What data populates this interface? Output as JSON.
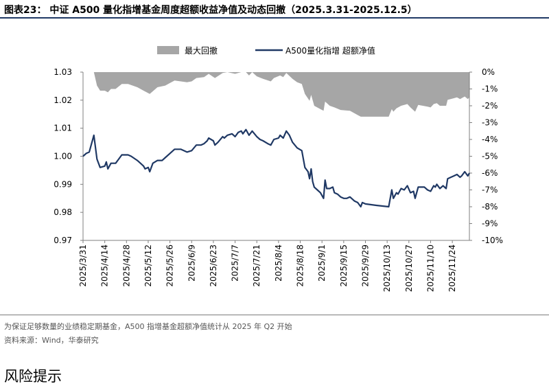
{
  "figure": {
    "title": "图表23：  中证 A500 量化指增基金周度超额收益净值及动态回撤（2025.3.31-2025.12.5）",
    "note": "为保证足够数量的业绩稳定期基金，A500 指增基金超额净值统计从 2025 年 Q2 开始",
    "source": "资料来源：Wind，华泰研究"
  },
  "next_section": {
    "title": "风险提示"
  },
  "chart_data": {
    "type": "line",
    "legend": {
      "placement": "top-center",
      "entries": [
        "最大回撤",
        "A500量化指增 超额净值"
      ]
    },
    "left_axis": {
      "ticks": [
        "0.97",
        "0.98",
        "0.99",
        "1.00",
        "1.01",
        "1.02",
        "1.03"
      ],
      "range": [
        0.97,
        1.03
      ]
    },
    "right_axis": {
      "ticks": [
        "0%",
        "-1%",
        "-2%",
        "-3%",
        "-4%",
        "-5%",
        "-6%",
        "-7%",
        "-8%",
        "-9%",
        "-10%"
      ],
      "range": [
        -10,
        0
      ]
    },
    "x_ticks": [
      "2025/3/31",
      "2025/4/14",
      "2025/4/28",
      "2025/5/12",
      "2025/5/26",
      "2025/6/9",
      "2025/6/23",
      "2025/7/7",
      "2025/7/21",
      "2025/8/4",
      "2025/8/18",
      "2025/9/1",
      "2025/9/15",
      "2025/9/29",
      "2025/10/13",
      "2025/10/27",
      "2025/11/10",
      "2025/11/24"
    ],
    "x_range": [
      "2025-03-31",
      "2025-12-05"
    ],
    "grid": false,
    "colors": {
      "nav_line": "#1f3864",
      "drawdown_area": "#a6a6a6"
    },
    "series": [
      {
        "name": "A500量化指增 超额净值",
        "axis": "left",
        "style": "line",
        "points": [
          [
            "2025-03-31",
            1.0
          ],
          [
            "2025-04-02",
            1.001
          ],
          [
            "2025-04-04",
            1.0015
          ],
          [
            "2025-04-07",
            1.0075
          ],
          [
            "2025-04-09",
            0.999
          ],
          [
            "2025-04-11",
            0.996
          ],
          [
            "2025-04-14",
            0.9965
          ],
          [
            "2025-04-15",
            0.998
          ],
          [
            "2025-04-16",
            0.9955
          ],
          [
            "2025-04-18",
            0.9975
          ],
          [
            "2025-04-21",
            0.9975
          ],
          [
            "2025-04-23",
            0.999
          ],
          [
            "2025-04-25",
            1.0005
          ],
          [
            "2025-04-29",
            1.0005
          ],
          [
            "2025-05-01",
            1.0
          ],
          [
            "2025-05-05",
            0.9985
          ],
          [
            "2025-05-07",
            0.9975
          ],
          [
            "2025-05-09",
            0.9965
          ],
          [
            "2025-05-10",
            0.9955
          ],
          [
            "2025-05-12",
            0.996
          ],
          [
            "2025-05-13",
            0.9945
          ],
          [
            "2025-05-15",
            0.9975
          ],
          [
            "2025-05-18",
            0.9985
          ],
          [
            "2025-05-21",
            0.9985
          ],
          [
            "2025-05-23",
            0.9995
          ],
          [
            "2025-05-26",
            1.001
          ],
          [
            "2025-05-29",
            1.0025
          ],
          [
            "2025-06-02",
            1.0025
          ],
          [
            "2025-06-06",
            1.0015
          ],
          [
            "2025-06-09",
            1.002
          ],
          [
            "2025-06-12",
            1.004
          ],
          [
            "2025-06-15",
            1.004
          ],
          [
            "2025-06-17",
            1.0045
          ],
          [
            "2025-06-19",
            1.0055
          ],
          [
            "2025-06-20",
            1.0065
          ],
          [
            "2025-06-23",
            1.0055
          ],
          [
            "2025-06-24",
            1.004
          ],
          [
            "2025-06-26",
            1.005
          ],
          [
            "2025-06-29",
            1.007
          ],
          [
            "2025-06-30",
            1.0065
          ],
          [
            "2025-07-02",
            1.0075
          ],
          [
            "2025-07-05",
            1.008
          ],
          [
            "2025-07-07",
            1.007
          ],
          [
            "2025-07-09",
            1.0085
          ],
          [
            "2025-07-11",
            1.009
          ],
          [
            "2025-07-12",
            1.008
          ],
          [
            "2025-07-14",
            1.0095
          ],
          [
            "2025-07-16",
            1.0075
          ],
          [
            "2025-07-18",
            1.009
          ],
          [
            "2025-07-21",
            1.007
          ],
          [
            "2025-07-23",
            1.006
          ],
          [
            "2025-07-25",
            1.0055
          ],
          [
            "2025-07-28",
            1.0045
          ],
          [
            "2025-07-30",
            1.004
          ],
          [
            "2025-08-01",
            1.006
          ],
          [
            "2025-08-04",
            1.0065
          ],
          [
            "2025-08-05",
            1.0075
          ],
          [
            "2025-08-07",
            1.0065
          ],
          [
            "2025-08-09",
            1.009
          ],
          [
            "2025-08-11",
            1.0075
          ],
          [
            "2025-08-13",
            1.005
          ],
          [
            "2025-08-16",
            1.003
          ],
          [
            "2025-08-19",
            1.002
          ],
          [
            "2025-08-21",
            0.996
          ],
          [
            "2025-08-23",
            0.9945
          ],
          [
            "2025-08-24",
            0.992
          ],
          [
            "2025-08-25",
            0.9955
          ],
          [
            "2025-08-26",
            0.991
          ],
          [
            "2025-08-27",
            0.989
          ],
          [
            "2025-08-29",
            0.988
          ],
          [
            "2025-08-31",
            0.987
          ],
          [
            "2025-09-02",
            0.985
          ],
          [
            "2025-09-03",
            0.9915
          ],
          [
            "2025-09-04",
            0.9885
          ],
          [
            "2025-09-06",
            0.9885
          ],
          [
            "2025-09-08",
            0.989
          ],
          [
            "2025-09-09",
            0.987
          ],
          [
            "2025-09-11",
            0.9865
          ],
          [
            "2025-09-13",
            0.9855
          ],
          [
            "2025-09-15",
            0.985
          ],
          [
            "2025-09-17",
            0.985
          ],
          [
            "2025-09-19",
            0.9855
          ],
          [
            "2025-09-22",
            0.984
          ],
          [
            "2025-09-24",
            0.9835
          ],
          [
            "2025-09-26",
            0.982
          ],
          [
            "2025-09-27",
            0.9835
          ],
          [
            "2025-09-29",
            0.983
          ],
          [
            "2025-10-06",
            0.9825
          ],
          [
            "2025-10-14",
            0.982
          ],
          [
            "2025-10-16",
            0.988
          ],
          [
            "2025-10-17",
            0.985
          ],
          [
            "2025-10-19",
            0.987
          ],
          [
            "2025-10-20",
            0.9865
          ],
          [
            "2025-10-22",
            0.9885
          ],
          [
            "2025-10-24",
            0.988
          ],
          [
            "2025-10-26",
            0.9895
          ],
          [
            "2025-10-28",
            0.987
          ],
          [
            "2025-10-30",
            0.9875
          ],
          [
            "2025-10-31",
            0.985
          ],
          [
            "2025-11-02",
            0.989
          ],
          [
            "2025-11-04",
            0.989
          ],
          [
            "2025-11-06",
            0.989
          ],
          [
            "2025-11-08",
            0.988
          ],
          [
            "2025-11-10",
            0.9875
          ],
          [
            "2025-11-12",
            0.9895
          ],
          [
            "2025-11-13",
            0.989
          ],
          [
            "2025-11-14",
            0.99
          ],
          [
            "2025-11-16",
            0.9885
          ],
          [
            "2025-11-18",
            0.9895
          ],
          [
            "2025-11-20",
            0.9885
          ],
          [
            "2025-11-21",
            0.992
          ],
          [
            "2025-11-23",
            0.9925
          ],
          [
            "2025-11-25",
            0.993
          ],
          [
            "2025-11-27",
            0.9935
          ],
          [
            "2025-11-29",
            0.9925
          ],
          [
            "2025-11-30",
            0.993
          ],
          [
            "2025-12-02",
            0.9945
          ],
          [
            "2025-12-04",
            0.993
          ],
          [
            "2025-12-05",
            0.994
          ]
        ]
      },
      {
        "name": "最大回撤",
        "axis": "right",
        "style": "area",
        "unit": "%",
        "points": [
          [
            "2025-03-31",
            0.0
          ],
          [
            "2025-04-07",
            0.0
          ],
          [
            "2025-04-09",
            -0.8
          ],
          [
            "2025-04-11",
            -1.1
          ],
          [
            "2025-04-14",
            -1.1
          ],
          [
            "2025-04-16",
            -1.2
          ],
          [
            "2025-04-18",
            -1.0
          ],
          [
            "2025-04-21",
            -1.0
          ],
          [
            "2025-04-25",
            -0.7
          ],
          [
            "2025-04-29",
            -0.7
          ],
          [
            "2025-05-05",
            -0.9
          ],
          [
            "2025-05-09",
            -1.1
          ],
          [
            "2025-05-13",
            -1.3
          ],
          [
            "2025-05-18",
            -0.9
          ],
          [
            "2025-05-23",
            -0.8
          ],
          [
            "2025-05-26",
            -0.65
          ],
          [
            "2025-05-29",
            -0.5
          ],
          [
            "2025-06-06",
            -0.6
          ],
          [
            "2025-06-09",
            -0.55
          ],
          [
            "2025-06-12",
            -0.35
          ],
          [
            "2025-06-17",
            -0.3
          ],
          [
            "2025-06-20",
            -0.1
          ],
          [
            "2025-06-24",
            -0.35
          ],
          [
            "2025-06-29",
            -0.05
          ],
          [
            "2025-07-02",
            0.0
          ],
          [
            "2025-07-07",
            -0.1
          ],
          [
            "2025-07-11",
            0.0
          ],
          [
            "2025-07-14",
            0.0
          ],
          [
            "2025-07-16",
            -0.2
          ],
          [
            "2025-07-18",
            0.0
          ],
          [
            "2025-07-21",
            -0.25
          ],
          [
            "2025-07-25",
            -0.4
          ],
          [
            "2025-07-30",
            -0.55
          ],
          [
            "2025-08-01",
            -0.35
          ],
          [
            "2025-08-05",
            -0.2
          ],
          [
            "2025-08-07",
            -0.3
          ],
          [
            "2025-08-09",
            -0.05
          ],
          [
            "2025-08-13",
            -0.4
          ],
          [
            "2025-08-16",
            -0.6
          ],
          [
            "2025-08-19",
            -0.7
          ],
          [
            "2025-08-21",
            -1.3
          ],
          [
            "2025-08-24",
            -1.7
          ],
          [
            "2025-08-25",
            -1.35
          ],
          [
            "2025-08-27",
            -2.0
          ],
          [
            "2025-08-31",
            -2.2
          ],
          [
            "2025-09-02",
            -2.3
          ],
          [
            "2025-09-03",
            -1.75
          ],
          [
            "2025-09-06",
            -2.0
          ],
          [
            "2025-09-09",
            -2.1
          ],
          [
            "2025-09-13",
            -2.25
          ],
          [
            "2025-09-19",
            -2.3
          ],
          [
            "2025-09-24",
            -2.55
          ],
          [
            "2025-09-26",
            -2.65
          ],
          [
            "2025-10-14",
            -2.65
          ],
          [
            "2025-10-16",
            -2.2
          ],
          [
            "2025-10-17",
            -2.35
          ],
          [
            "2025-10-19",
            -2.15
          ],
          [
            "2025-10-22",
            -2.0
          ],
          [
            "2025-10-26",
            -1.9
          ],
          [
            "2025-10-28",
            -2.1
          ],
          [
            "2025-10-31",
            -2.35
          ],
          [
            "2025-11-02",
            -1.95
          ],
          [
            "2025-11-08",
            -2.05
          ],
          [
            "2025-11-10",
            -2.1
          ],
          [
            "2025-11-12",
            -1.9
          ],
          [
            "2025-11-14",
            -1.85
          ],
          [
            "2025-11-16",
            -2.0
          ],
          [
            "2025-11-20",
            -2.0
          ],
          [
            "2025-11-21",
            -1.65
          ],
          [
            "2025-11-25",
            -1.55
          ],
          [
            "2025-11-27",
            -1.5
          ],
          [
            "2025-11-29",
            -1.6
          ],
          [
            "2025-12-02",
            -1.45
          ],
          [
            "2025-12-04",
            -1.6
          ],
          [
            "2025-12-05",
            -1.5
          ]
        ]
      }
    ]
  }
}
